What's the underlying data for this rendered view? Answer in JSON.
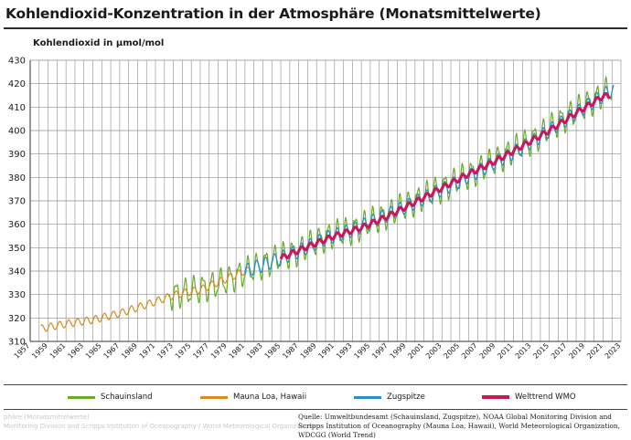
{
  "title": "Kohlendioxid-Konzentration in der Atmosphäre (Monatsmittelwerte)",
  "ylabel": "Kohlendioxid in µmol/mol",
  "source": "Quelle: Umweltbundesamt (Schauinsland, Zugspitze), NOAA Global Monitoring Division and Scripps Institution of Oceanography  (Mauna Loa, Hawaii), World Meteorological Organization, WDCGG (World Trend)",
  "ghost_text": {
    "line1": "phäre (Monatsmittelwerte)",
    "line2": "Monitoring Division and Scripps Institution of Oceanography / World Meteorological Organization"
  },
  "colors": {
    "Schauinsland": "#6aaa2a",
    "Mauna Loa, Hawaii": "#d78a1f",
    "Zugspitze": "#2b8ec6",
    "Welttrend WMO": "#c8185a"
  },
  "chart_data": {
    "type": "line",
    "title": "Kohlendioxid-Konzentration in der Atmosphäre (Monatsmittelwerte)",
    "xlabel": "",
    "ylabel": "Kohlendioxid in µmol/mol",
    "xlim": [
      1957,
      2023
    ],
    "ylim": [
      310,
      430
    ],
    "grid": true,
    "legend_position": "bottom",
    "x_ticks": [
      "1957",
      "1959",
      "1961",
      "1963",
      "1965",
      "1967",
      "1969",
      "1971",
      "1973",
      "1975",
      "1977",
      "1979",
      "1981",
      "1983",
      "1985",
      "1987",
      "1989",
      "1991",
      "1993",
      "1995",
      "1997",
      "1999",
      "2001",
      "2003",
      "2005",
      "2007",
      "2009",
      "2011",
      "2013",
      "2015",
      "2017",
      "2019",
      "2021",
      "2023"
    ],
    "y_ticks": [
      310,
      320,
      330,
      340,
      350,
      360,
      370,
      380,
      390,
      400,
      410,
      420,
      430
    ],
    "series": [
      {
        "name": "Schauinsland",
        "x_range": [
          1972.5,
          2022.0
        ],
        "annual_mean": [
          [
            1972,
            329.0
          ],
          [
            1975,
            331.5
          ],
          [
            1978,
            334.5
          ],
          [
            1981,
            339.5
          ],
          [
            1984,
            344.5
          ],
          [
            1987,
            348.5
          ],
          [
            1990,
            354.5
          ],
          [
            1993,
            357.5
          ],
          [
            1996,
            362.5
          ],
          [
            1999,
            368.0
          ],
          [
            2002,
            373.5
          ],
          [
            2005,
            379.0
          ],
          [
            2008,
            385.0
          ],
          [
            2011,
            391.5
          ],
          [
            2014,
            398.0
          ],
          [
            2017,
            406.0
          ],
          [
            2020,
            413.0
          ],
          [
            2022,
            418.0
          ]
        ],
        "seasonal_amplitude": 10.0
      },
      {
        "name": "Mauna Loa, Hawaii",
        "x_range": [
          1958.2,
          1981.5
        ],
        "annual_mean": [
          [
            1958,
            315.3
          ],
          [
            1961,
            317.5
          ],
          [
            1964,
            319.2
          ],
          [
            1967,
            322.0
          ],
          [
            1970,
            325.7
          ],
          [
            1973,
            329.7
          ],
          [
            1976,
            332.1
          ],
          [
            1979,
            336.8
          ],
          [
            1981,
            340.1
          ]
        ],
        "seasonal_amplitude": 3.2
      },
      {
        "name": "Zugspitze",
        "x_range": [
          1981.0,
          2022.2
        ],
        "annual_mean": [
          [
            1981,
            340.0
          ],
          [
            1984,
            344.0
          ],
          [
            1987,
            348.5
          ],
          [
            1990,
            354.0
          ],
          [
            1993,
            357.5
          ],
          [
            1996,
            362.5
          ],
          [
            1999,
            367.5
          ],
          [
            2002,
            373.0
          ],
          [
            2005,
            378.5
          ],
          [
            2008,
            384.5
          ],
          [
            2011,
            390.5
          ],
          [
            2014,
            397.5
          ],
          [
            2017,
            405.0
          ],
          [
            2020,
            412.5
          ],
          [
            2022,
            417.5
          ]
        ],
        "seasonal_amplitude": 6.0
      },
      {
        "name": "Welttrend WMO",
        "x_range": [
          1985.0,
          2021.8
        ],
        "annual_mean": [
          [
            1985,
            345.5
          ],
          [
            1988,
            350.5
          ],
          [
            1991,
            355.0
          ],
          [
            1994,
            358.5
          ],
          [
            1997,
            363.5
          ],
          [
            2000,
            369.5
          ],
          [
            2003,
            375.5
          ],
          [
            2006,
            381.5
          ],
          [
            2009,
            387.0
          ],
          [
            2012,
            393.5
          ],
          [
            2015,
            400.0
          ],
          [
            2018,
            407.5
          ],
          [
            2021,
            414.7
          ]
        ],
        "seasonal_amplitude": 2.2
      }
    ]
  }
}
